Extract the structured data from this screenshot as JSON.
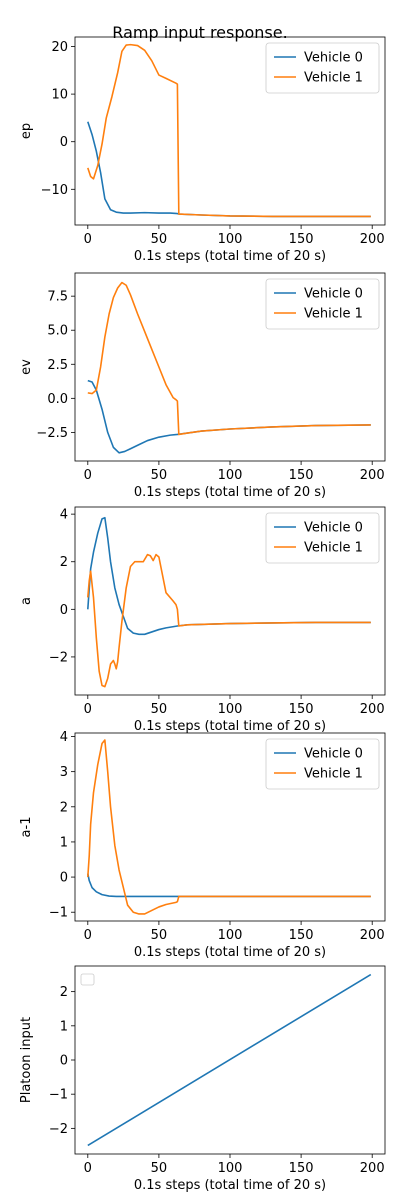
{
  "figure": {
    "title": "Ramp input response.",
    "colors": {
      "series0": "#1f77b4",
      "series1": "#ff7f0e"
    }
  },
  "chart_data": [
    {
      "type": "line",
      "title": "",
      "xlabel": "0.1s steps (total time of 20 s)",
      "ylabel": "ep",
      "xlim": [
        -9,
        209
      ],
      "ylim": [
        -17.5,
        22
      ],
      "xticks": [
        0,
        50,
        100,
        150,
        200
      ],
      "yticks": [
        -10,
        0,
        10,
        20
      ],
      "legend": "top-right",
      "series": [
        {
          "name": "Vehicle 0",
          "x": [
            0,
            3,
            6,
            9,
            12,
            16,
            20,
            25,
            30,
            40,
            50,
            58,
            63,
            64,
            80,
            100,
            130,
            160,
            199
          ],
          "y": [
            4.2,
            1.5,
            -2.0,
            -6.5,
            -12.0,
            -14.3,
            -14.8,
            -15.0,
            -15.0,
            -14.9,
            -15.0,
            -15.0,
            -15.1,
            -15.2,
            -15.4,
            -15.6,
            -15.7,
            -15.7,
            -15.7
          ]
        },
        {
          "name": "Vehicle 1",
          "x": [
            0,
            2,
            4,
            7,
            10,
            13,
            17,
            21,
            24,
            27,
            30,
            35,
            40,
            45,
            50,
            55,
            62,
            63,
            64,
            80,
            100,
            130,
            160,
            199
          ],
          "y": [
            -5.5,
            -7.3,
            -7.8,
            -5.0,
            -0.5,
            5.0,
            9.5,
            14.5,
            19.0,
            20.3,
            20.4,
            20.2,
            19.2,
            17.0,
            14.0,
            13.3,
            12.3,
            12.1,
            -15.2,
            -15.4,
            -15.6,
            -15.7,
            -15.7,
            -15.7
          ]
        }
      ]
    },
    {
      "type": "line",
      "title": "",
      "xlabel": "0.1s steps (total time of 20 s)",
      "ylabel": "ev",
      "xlim": [
        -9,
        209
      ],
      "ylim": [
        -4.6,
        9.2
      ],
      "xticks": [
        0,
        50,
        100,
        150,
        200
      ],
      "yticks": [
        -2.5,
        0.0,
        2.5,
        5.0,
        7.5
      ],
      "legend": "top-right",
      "series": [
        {
          "name": "Vehicle 0",
          "x": [
            0,
            3,
            6,
            10,
            14,
            18,
            22,
            26,
            30,
            36,
            42,
            50,
            58,
            63,
            70,
            80,
            100,
            130,
            160,
            199
          ],
          "y": [
            1.3,
            1.2,
            0.6,
            -0.8,
            -2.5,
            -3.6,
            -4.0,
            -3.9,
            -3.7,
            -3.4,
            -3.1,
            -2.85,
            -2.7,
            -2.65,
            -2.55,
            -2.4,
            -2.25,
            -2.1,
            -2.0,
            -1.95
          ]
        },
        {
          "name": "Vehicle 1",
          "x": [
            0,
            3,
            6,
            9,
            12,
            15,
            18,
            21,
            24,
            27,
            30,
            35,
            40,
            45,
            50,
            55,
            60,
            62,
            63,
            64,
            70,
            80,
            100,
            130,
            160,
            199
          ],
          "y": [
            0.4,
            0.35,
            0.6,
            2.3,
            4.5,
            6.2,
            7.4,
            8.1,
            8.5,
            8.3,
            7.6,
            6.2,
            4.9,
            3.6,
            2.3,
            1.0,
            0.05,
            -0.1,
            -0.2,
            -2.65,
            -2.55,
            -2.4,
            -2.25,
            -2.1,
            -2.0,
            -1.95
          ]
        }
      ]
    },
    {
      "type": "line",
      "title": "",
      "xlabel": "0.1s steps (total time of 20 s)",
      "ylabel": "a",
      "xlim": [
        -9,
        209
      ],
      "ylim": [
        -3.6,
        4.3
      ],
      "xticks": [
        0,
        50,
        100,
        150,
        200
      ],
      "yticks": [
        -2,
        0,
        2,
        4
      ],
      "legend": "top-right",
      "series": [
        {
          "name": "Vehicle 0",
          "x": [
            0,
            2,
            4,
            7,
            10,
            12,
            14,
            16,
            19,
            22,
            25,
            28,
            32,
            36,
            40,
            45,
            50,
            55,
            63,
            70,
            100,
            130,
            160,
            199
          ],
          "y": [
            0.0,
            1.7,
            2.4,
            3.2,
            3.8,
            3.85,
            3.0,
            2.0,
            0.9,
            0.2,
            -0.3,
            -0.8,
            -1.0,
            -1.05,
            -1.05,
            -0.95,
            -0.85,
            -0.78,
            -0.7,
            -0.65,
            -0.6,
            -0.57,
            -0.55,
            -0.55
          ]
        },
        {
          "name": "Vehicle 1",
          "x": [
            0,
            1,
            2,
            4,
            6,
            8,
            10,
            12,
            14,
            16,
            18,
            19,
            20,
            21,
            22,
            24,
            27,
            30,
            33,
            36,
            39,
            42,
            44,
            46,
            48,
            50,
            52,
            55,
            60,
            62,
            63,
            64,
            70,
            100,
            130,
            160,
            199
          ],
          "y": [
            0.5,
            1.2,
            1.6,
            0.5,
            -1.2,
            -2.6,
            -3.2,
            -3.25,
            -2.9,
            -2.3,
            -2.15,
            -2.3,
            -2.5,
            -2.2,
            -1.6,
            -0.5,
            0.9,
            1.8,
            2.0,
            2.0,
            2.0,
            2.3,
            2.25,
            2.05,
            2.3,
            2.2,
            1.6,
            0.7,
            0.35,
            0.2,
            0.0,
            -0.7,
            -0.65,
            -0.6,
            -0.57,
            -0.55,
            -0.55
          ]
        }
      ]
    },
    {
      "type": "line",
      "title": "",
      "xlabel": "0.1s steps (total time of 20 s)",
      "ylabel": "a-1",
      "xlim": [
        -9,
        209
      ],
      "ylim": [
        -1.25,
        4.1
      ],
      "xticks": [
        0,
        50,
        100,
        150,
        200
      ],
      "yticks": [
        -1,
        0,
        1,
        2,
        3,
        4
      ],
      "legend": "top-right",
      "series": [
        {
          "name": "Vehicle 0",
          "x": [
            0,
            1,
            3,
            6,
            10,
            15,
            20,
            30,
            50,
            100,
            150,
            199
          ],
          "y": [
            0.1,
            -0.1,
            -0.3,
            -0.42,
            -0.5,
            -0.54,
            -0.55,
            -0.55,
            -0.55,
            -0.55,
            -0.55,
            -0.55
          ]
        },
        {
          "name": "Vehicle 1",
          "x": [
            0,
            1,
            2,
            4,
            7,
            10,
            12,
            14,
            16,
            19,
            22,
            25,
            28,
            32,
            36,
            40,
            45,
            50,
            55,
            62,
            63,
            64,
            100,
            150,
            199
          ],
          "y": [
            0.0,
            0.6,
            1.5,
            2.4,
            3.2,
            3.8,
            3.9,
            3.0,
            2.0,
            0.9,
            0.2,
            -0.3,
            -0.8,
            -1.0,
            -1.05,
            -1.05,
            -0.95,
            -0.85,
            -0.78,
            -0.72,
            -0.7,
            -0.55,
            -0.55,
            -0.55,
            -0.55
          ]
        }
      ]
    },
    {
      "type": "line",
      "title": "",
      "xlabel": "0.1s steps (total time of 20 s)",
      "ylabel": "Platoon input",
      "xlim": [
        -9,
        209
      ],
      "ylim": [
        -2.75,
        2.75
      ],
      "xticks": [
        0,
        50,
        100,
        150,
        200
      ],
      "yticks": [
        -2,
        -1,
        0,
        1,
        2
      ],
      "legend": "top-left",
      "legend_empty": true,
      "series": [
        {
          "name": "",
          "x": [
            0,
            199
          ],
          "y": [
            -2.5,
            2.5
          ]
        }
      ]
    }
  ]
}
